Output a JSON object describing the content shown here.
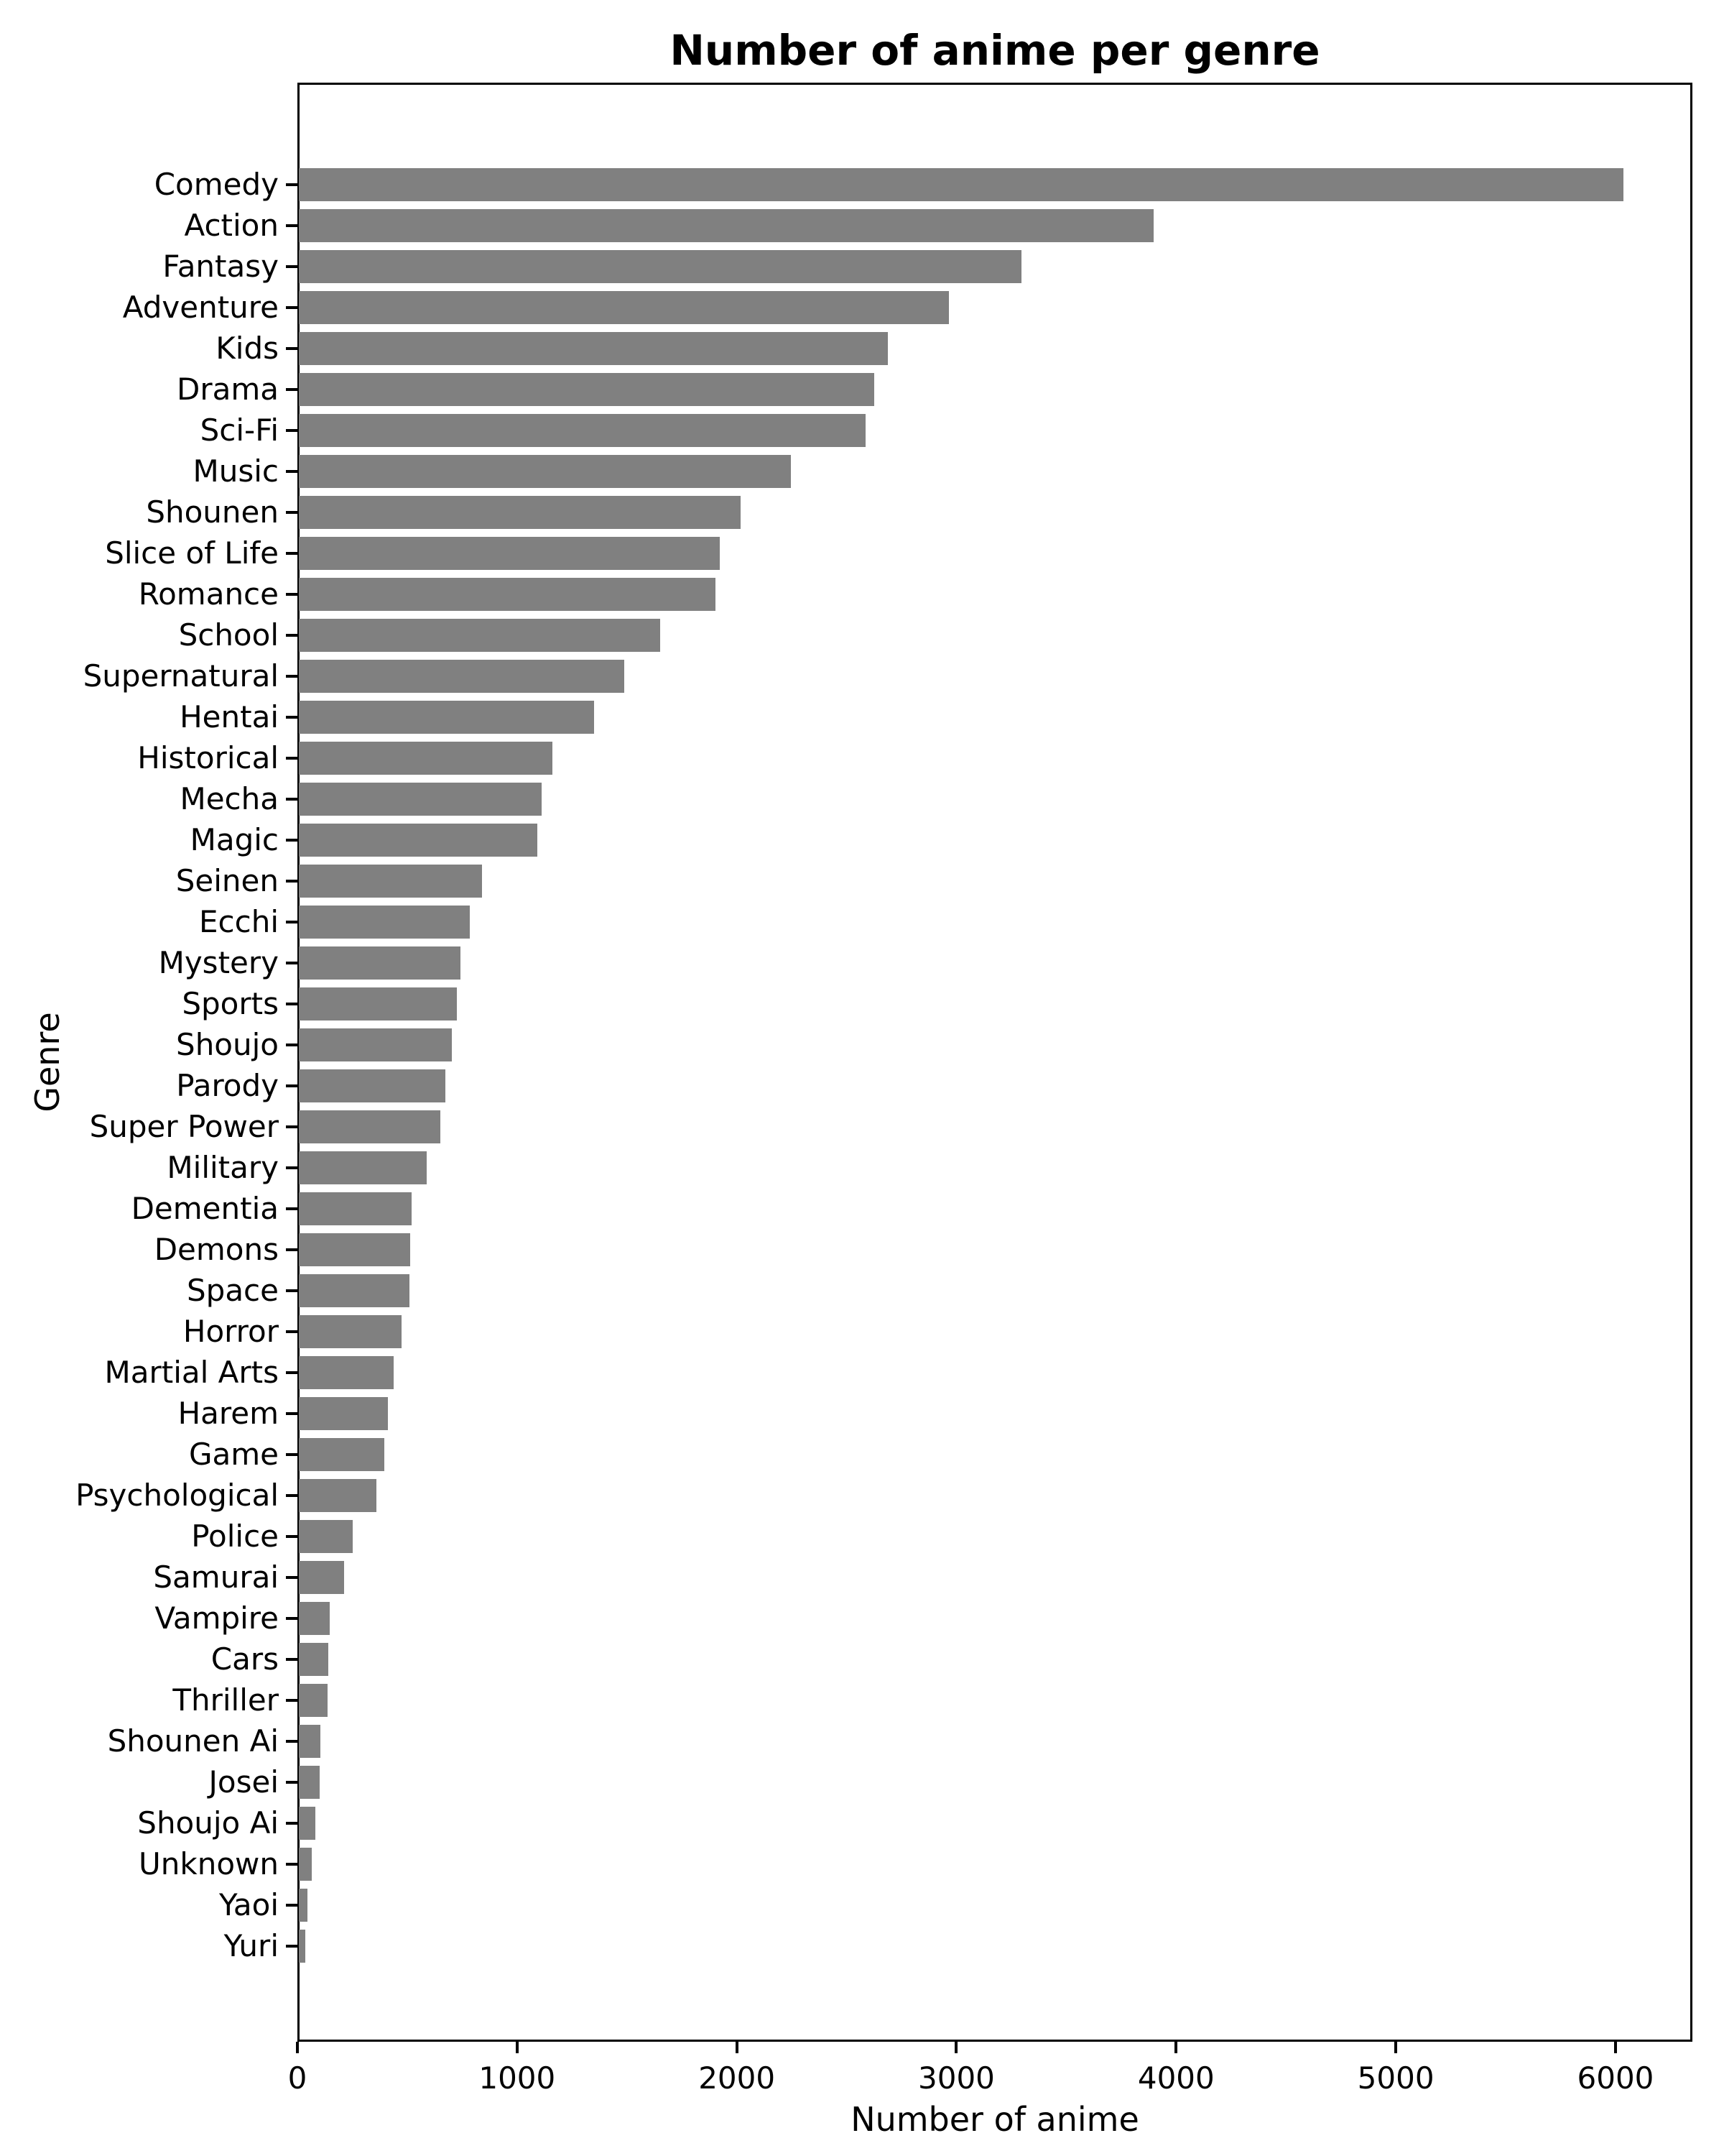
{
  "figure": {
    "background": "#ffffff"
  },
  "chart_data": {
    "type": "bar",
    "orientation": "horizontal",
    "title": "Number of anime per genre",
    "xlabel": "Number of anime",
    "ylabel": "Genre",
    "categories": [
      "Comedy",
      "Action",
      "Fantasy",
      "Adventure",
      "Kids",
      "Drama",
      "Sci-Fi",
      "Music",
      "Shounen",
      "Slice of Life",
      "Romance",
      "School",
      "Supernatural",
      "Hentai",
      "Historical",
      "Mecha",
      "Magic",
      "Seinen",
      "Ecchi",
      "Mystery",
      "Sports",
      "Shoujo",
      "Parody",
      "Super Power",
      "Military",
      "Dementia",
      "Demons",
      "Space",
      "Horror",
      "Martial Arts",
      "Harem",
      "Game",
      "Psychological",
      "Police",
      "Samurai",
      "Vampire",
      "Cars",
      "Thriller",
      "Shounen Ai",
      "Josei",
      "Shoujo Ai",
      "Unknown",
      "Yaoi",
      "Yuri"
    ],
    "values": [
      6030,
      3890,
      3290,
      2960,
      2680,
      2620,
      2580,
      2240,
      2010,
      1915,
      1895,
      1645,
      1480,
      1345,
      1155,
      1105,
      1085,
      835,
      777,
      737,
      718,
      698,
      668,
      643,
      583,
      513,
      508,
      503,
      468,
      433,
      404,
      388,
      352,
      246,
      205,
      139,
      134,
      130,
      97,
      94,
      76,
      58,
      39,
      30
    ],
    "x_tick_labels": [
      "0",
      "1000",
      "2000",
      "3000",
      "4000",
      "5000",
      "6000"
    ],
    "x_tick_values": [
      0,
      1000,
      2000,
      3000,
      4000,
      5000,
      6000
    ],
    "xlim": [
      0,
      6350
    ],
    "grid": false,
    "legend": "none",
    "bar_color": "#808080",
    "text_color": "#000000",
    "spine_color": "#000000"
  }
}
